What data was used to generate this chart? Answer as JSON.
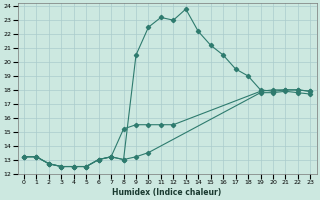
{
  "xlabel": "Humidex (Indice chaleur)",
  "bg_color": "#cce8e0",
  "grid_color": "#aacccc",
  "line_color": "#2e7b6e",
  "xlim": [
    -0.5,
    23.5
  ],
  "ylim": [
    12,
    24.2
  ],
  "xticks": [
    0,
    1,
    2,
    3,
    4,
    5,
    6,
    7,
    8,
    9,
    10,
    11,
    12,
    13,
    14,
    15,
    16,
    17,
    18,
    19,
    20,
    21,
    22,
    23
  ],
  "yticks": [
    12,
    13,
    14,
    15,
    16,
    17,
    18,
    19,
    20,
    21,
    22,
    23,
    24
  ],
  "lines": [
    {
      "x": [
        0,
        1,
        2,
        3,
        4,
        5,
        6,
        7,
        8,
        9,
        10,
        11,
        12,
        13,
        14,
        15,
        16,
        17,
        18,
        19,
        20,
        21,
        22,
        23
      ],
      "y": [
        13.2,
        13.2,
        12.7,
        12.5,
        12.5,
        12.5,
        13.0,
        13.2,
        13.0,
        20.5,
        22.5,
        23.2,
        23.0,
        23.8,
        22.2,
        21.2,
        20.5,
        19.5,
        19.0,
        18.0,
        17.9,
        18.0,
        18.0,
        17.9
      ]
    },
    {
      "x": [
        0,
        1,
        2,
        3,
        4,
        5,
        6,
        7,
        8,
        9,
        10,
        11,
        12,
        19,
        20,
        21,
        22,
        23
      ],
      "y": [
        13.2,
        13.2,
        12.7,
        12.5,
        12.5,
        12.5,
        13.0,
        13.2,
        15.2,
        15.5,
        15.5,
        15.5,
        15.5,
        17.9,
        18.0,
        18.0,
        18.0,
        17.9
      ]
    },
    {
      "x": [
        0,
        1,
        2,
        3,
        4,
        5,
        6,
        7,
        8,
        9,
        10,
        19,
        20,
        21,
        22,
        23
      ],
      "y": [
        13.2,
        13.2,
        12.7,
        12.5,
        12.5,
        12.5,
        13.0,
        13.2,
        13.0,
        13.2,
        13.5,
        17.8,
        17.8,
        17.9,
        17.8,
        17.7
      ]
    }
  ]
}
